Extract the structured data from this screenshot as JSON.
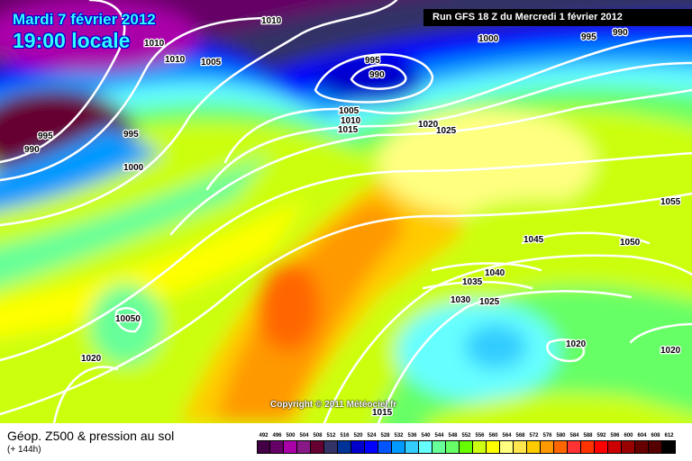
{
  "header": {
    "date": "Mardi 7 février 2012",
    "time": "19:00 locale",
    "run": "Run GFS 18 Z du Mercredi 1 février 2012"
  },
  "copyright": "Copyright © 2011 Météociel.fr",
  "footer": {
    "title": "Géop. Z500 & pression au sol",
    "subtitle": "(+ 144h)"
  },
  "legend": {
    "unit_values": [
      "492",
      "496",
      "500",
      "504",
      "508",
      "512",
      "516",
      "520",
      "524",
      "528",
      "532",
      "536",
      "540",
      "544",
      "548",
      "552",
      "556",
      "560",
      "564",
      "568",
      "572",
      "576",
      "580",
      "584",
      "588",
      "592",
      "596",
      "600",
      "604",
      "608",
      "612"
    ],
    "colors": [
      "#440044",
      "#660066",
      "#aa00aa",
      "#881a88",
      "#660033",
      "#333366",
      "#003399",
      "#0000cc",
      "#0000ff",
      "#0055ff",
      "#0099ff",
      "#33ccff",
      "#66ffff",
      "#66ff99",
      "#66ff66",
      "#66ff00",
      "#ccff11",
      "#ffff00",
      "#ffff80",
      "#ffe64d",
      "#ffcc00",
      "#ff9900",
      "#ff6600",
      "#ff3333",
      "#ff3300",
      "#ff0000",
      "#cc0000",
      "#990000",
      "#660000",
      "#550000",
      "#000000"
    ]
  },
  "isobar_labels": [
    "1010",
    "1010",
    "1010",
    "1005",
    "995",
    "990",
    "1000",
    "995",
    "990",
    "995",
    "990",
    "995",
    "1000",
    "1005",
    "1010",
    "1015",
    "1020",
    "1025",
    "1055",
    "1045",
    "1050",
    "1040",
    "1035",
    "1030",
    "1025",
    "1020",
    "1020",
    "10050",
    "1020",
    "1015"
  ]
}
